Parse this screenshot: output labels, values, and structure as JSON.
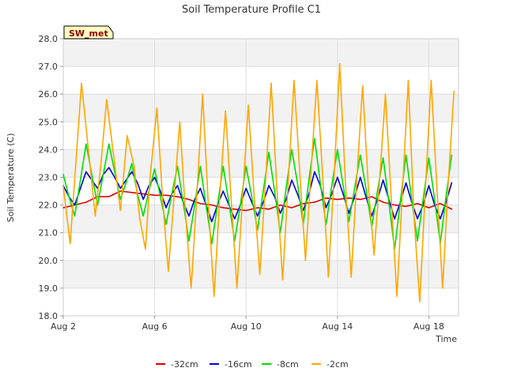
{
  "chart_data": {
    "type": "line",
    "title": "Soil Temperature Profile C1",
    "xlabel": "Time",
    "ylabel": "Soil Temperature (C)",
    "badge": "SW_met",
    "ylim": [
      18.0,
      28.0
    ],
    "xlim": [
      2,
      19.3
    ],
    "y_ticks": [
      "18.0",
      "19.0",
      "20.0",
      "21.0",
      "22.0",
      "23.0",
      "24.0",
      "25.0",
      "26.0",
      "27.0",
      "28.0"
    ],
    "x_ticks": [
      {
        "value": 2,
        "label": "Aug 2"
      },
      {
        "value": 6,
        "label": "Aug 6"
      },
      {
        "value": 10,
        "label": "Aug 10"
      },
      {
        "value": 14,
        "label": "Aug 14"
      },
      {
        "value": 18,
        "label": "Aug 18"
      }
    ],
    "grid": true,
    "legend_position": "bottom",
    "series": [
      {
        "name": "-32cm",
        "color": "#dd0000",
        "x": [
          2.0,
          2.5,
          3.0,
          3.5,
          4.0,
          4.5,
          5.0,
          5.5,
          6.0,
          6.5,
          7.0,
          7.5,
          8.0,
          8.5,
          9.0,
          9.5,
          10.0,
          10.5,
          11.0,
          11.5,
          12.0,
          12.5,
          13.0,
          13.5,
          14.0,
          14.5,
          15.0,
          15.5,
          16.0,
          16.5,
          17.0,
          17.5,
          18.0,
          18.5,
          19.0
        ],
        "y": [
          21.9,
          22.0,
          22.1,
          22.3,
          22.3,
          22.5,
          22.45,
          22.4,
          22.35,
          22.35,
          22.3,
          22.2,
          22.05,
          22.0,
          21.9,
          21.85,
          21.8,
          21.9,
          21.85,
          22.0,
          21.9,
          22.05,
          22.1,
          22.25,
          22.2,
          22.25,
          22.2,
          22.3,
          22.1,
          22.0,
          21.95,
          22.05,
          21.9,
          22.05,
          21.85
        ]
      },
      {
        "name": "-16cm",
        "color": "#0000dd",
        "x": [
          2.0,
          2.25,
          2.5,
          2.75,
          3.0,
          3.25,
          3.5,
          3.75,
          4.0,
          4.25,
          4.5,
          4.75,
          5.0,
          5.25,
          5.5,
          5.75,
          6.0,
          6.25,
          6.5,
          6.75,
          7.0,
          7.25,
          7.5,
          7.75,
          8.0,
          8.25,
          8.5,
          8.75,
          9.0,
          9.25,
          9.5,
          9.75,
          10.0,
          10.25,
          10.5,
          10.75,
          11.0,
          11.25,
          11.5,
          11.75,
          12.0,
          12.25,
          12.5,
          12.75,
          13.0,
          13.25,
          13.5,
          13.75,
          14.0,
          14.25,
          14.5,
          14.75,
          15.0,
          15.25,
          15.5,
          15.75,
          16.0,
          16.25,
          16.5,
          16.75,
          17.0,
          17.25,
          17.5,
          17.75,
          18.0,
          18.25,
          18.5,
          18.75,
          19.0
        ],
        "y": [
          22.7,
          22.3,
          22.0,
          22.6,
          23.2,
          22.9,
          22.6,
          23.1,
          23.35,
          23.0,
          22.6,
          22.9,
          23.2,
          22.8,
          22.2,
          22.7,
          23.0,
          22.5,
          21.9,
          22.4,
          22.7,
          22.1,
          21.6,
          22.2,
          22.6,
          22.0,
          21.4,
          22.0,
          22.5,
          22.0,
          21.5,
          22.0,
          22.6,
          22.1,
          21.6,
          22.1,
          22.7,
          22.3,
          21.7,
          22.2,
          22.9,
          22.4,
          21.8,
          22.4,
          23.2,
          22.7,
          21.9,
          22.4,
          23.0,
          22.4,
          21.7,
          22.3,
          23.0,
          22.3,
          21.6,
          22.2,
          22.9,
          22.2,
          21.5,
          22.1,
          22.8,
          22.1,
          21.5,
          22.0,
          22.7,
          22.0,
          21.5,
          22.1,
          22.8
        ]
      },
      {
        "name": "-8cm",
        "color": "#00dd00",
        "x": [
          2.0,
          2.25,
          2.5,
          2.75,
          3.0,
          3.25,
          3.5,
          3.75,
          4.0,
          4.25,
          4.5,
          4.75,
          5.0,
          5.25,
          5.5,
          5.75,
          6.0,
          6.25,
          6.5,
          6.75,
          7.0,
          7.25,
          7.5,
          7.75,
          8.0,
          8.25,
          8.5,
          8.75,
          9.0,
          9.25,
          9.5,
          9.75,
          10.0,
          10.25,
          10.5,
          10.75,
          11.0,
          11.25,
          11.5,
          11.75,
          12.0,
          12.25,
          12.5,
          12.75,
          13.0,
          13.25,
          13.5,
          13.75,
          14.0,
          14.25,
          14.5,
          14.75,
          15.0,
          15.25,
          15.5,
          15.75,
          16.0,
          16.25,
          16.5,
          16.75,
          17.0,
          17.25,
          17.5,
          17.75,
          18.0,
          18.25,
          18.5,
          18.75,
          19.0
        ],
        "y": [
          23.1,
          22.3,
          21.6,
          22.9,
          24.2,
          23.1,
          22.0,
          23.1,
          24.2,
          23.2,
          22.2,
          22.8,
          23.5,
          22.4,
          21.6,
          22.5,
          23.3,
          22.3,
          21.3,
          22.4,
          23.4,
          22.1,
          20.7,
          22.0,
          23.4,
          22.0,
          20.6,
          22.0,
          23.4,
          22.1,
          20.7,
          22.0,
          23.4,
          22.3,
          21.1,
          22.5,
          23.9,
          22.5,
          21.0,
          22.6,
          24.0,
          22.8,
          21.3,
          22.9,
          24.4,
          22.8,
          21.3,
          22.7,
          24.0,
          22.7,
          21.4,
          22.6,
          23.8,
          22.6,
          21.2,
          22.5,
          23.7,
          22.1,
          20.4,
          22.1,
          23.8,
          22.2,
          20.7,
          22.2,
          23.7,
          22.2,
          20.6,
          22.3,
          23.8
        ]
      },
      {
        "name": "-2cm",
        "color": "#ffa500",
        "x": [
          2.0,
          2.3,
          2.55,
          2.8,
          3.1,
          3.4,
          3.65,
          3.9,
          4.2,
          4.5,
          4.8,
          5.1,
          5.35,
          5.6,
          5.8,
          6.1,
          6.35,
          6.6,
          6.85,
          7.1,
          7.35,
          7.6,
          7.85,
          8.1,
          8.35,
          8.6,
          8.85,
          9.1,
          9.35,
          9.6,
          9.85,
          10.1,
          10.35,
          10.6,
          10.85,
          11.1,
          11.35,
          11.6,
          11.85,
          12.1,
          12.35,
          12.6,
          12.85,
          13.1,
          13.35,
          13.6,
          13.85,
          14.1,
          14.35,
          14.6,
          14.85,
          15.1,
          15.35,
          15.6,
          15.85,
          16.1,
          16.35,
          16.6,
          16.85,
          17.1,
          17.35,
          17.6,
          17.85,
          18.1,
          18.35,
          18.6,
          18.85,
          19.1
        ],
        "y": [
          22.7,
          20.6,
          23.5,
          26.4,
          24.0,
          21.6,
          23.5,
          25.8,
          23.8,
          21.8,
          24.5,
          23.4,
          21.5,
          20.4,
          23.0,
          25.5,
          22.2,
          19.6,
          22.3,
          25.0,
          21.7,
          19.0,
          22.4,
          26.0,
          22.0,
          18.7,
          22.3,
          25.4,
          22.2,
          19.0,
          22.3,
          25.6,
          22.4,
          19.5,
          22.8,
          26.4,
          22.6,
          19.3,
          22.9,
          26.5,
          23.2,
          20.0,
          23.3,
          26.5,
          23.1,
          19.4,
          23.0,
          27.1,
          22.8,
          19.4,
          23.0,
          26.3,
          22.7,
          20.2,
          23.0,
          26.0,
          22.3,
          18.7,
          22.6,
          26.5,
          21.6,
          18.5,
          22.6,
          26.5,
          22.7,
          19.0,
          22.8,
          26.1
        ]
      }
    ]
  }
}
